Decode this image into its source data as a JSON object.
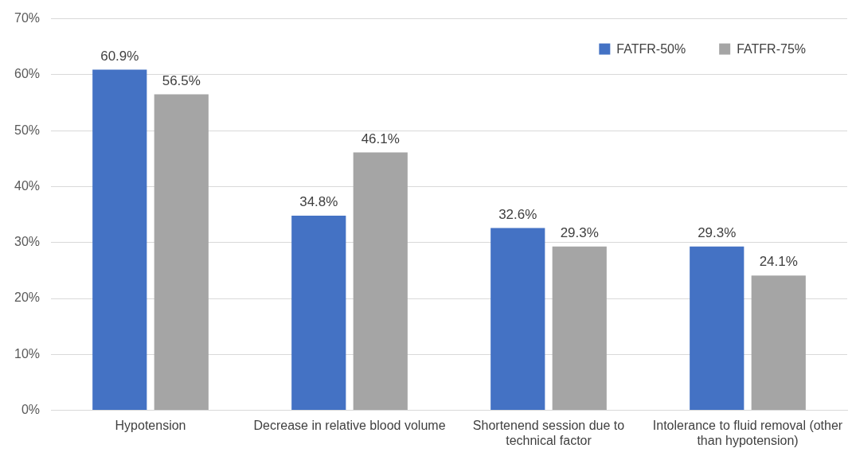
{
  "chart_data": {
    "type": "bar",
    "categories": [
      "Hypotension",
      "Decrease in relative blood volume",
      "Shortenend session due to technical factor",
      "Intolerance to fluid removal (other than hypotension)"
    ],
    "series": [
      {
        "name": "FATFR-50%",
        "color": "#4472c4",
        "values": [
          60.9,
          34.8,
          32.6,
          29.3
        ],
        "value_labels": [
          "60.9%",
          "34.8%",
          "32.6%",
          "29.3%"
        ]
      },
      {
        "name": "FATFR-75%",
        "color": "#a5a5a5",
        "values": [
          56.5,
          46.1,
          29.3,
          24.1
        ],
        "value_labels": [
          "56.5%",
          "46.1%",
          "29.3%",
          "24.1%"
        ]
      }
    ],
    "ylim": [
      0,
      70
    ],
    "yticks": [
      {
        "value": 0,
        "label": "0%"
      },
      {
        "value": 10,
        "label": "10%"
      },
      {
        "value": 20,
        "label": "20%"
      },
      {
        "value": 30,
        "label": "30%"
      },
      {
        "value": 40,
        "label": "40%"
      },
      {
        "value": 50,
        "label": "50%"
      },
      {
        "value": 60,
        "label": "60%"
      },
      {
        "value": 70,
        "label": "70%"
      }
    ],
    "grid": "y",
    "legend": "top right"
  }
}
